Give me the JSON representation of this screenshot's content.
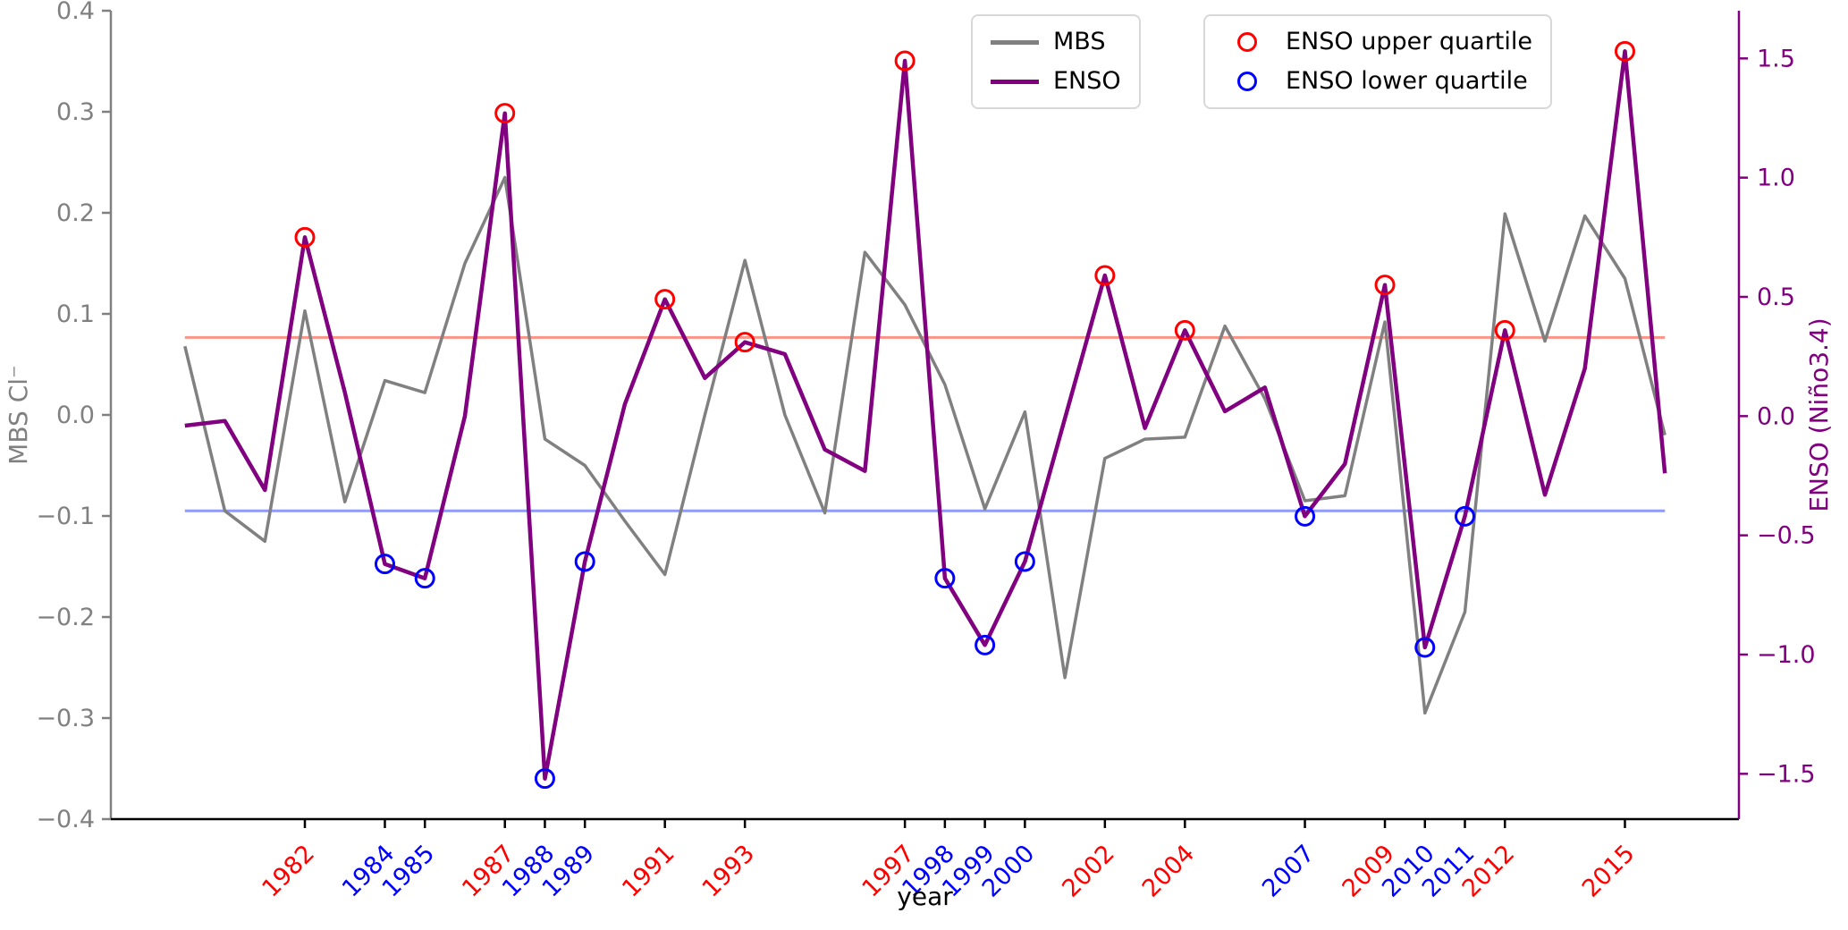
{
  "axes": {
    "left": {
      "label": "MBS Cl⁻",
      "color": "#808080",
      "range": [
        -0.4,
        0.4
      ],
      "ticks": [
        {
          "v": 0.4,
          "t": "0.4"
        },
        {
          "v": 0.3,
          "t": "0.3"
        },
        {
          "v": 0.2,
          "t": "0.2"
        },
        {
          "v": 0.1,
          "t": "0.1"
        },
        {
          "v": 0.0,
          "t": "0.0"
        },
        {
          "v": -0.1,
          "t": "−0.1"
        },
        {
          "v": -0.2,
          "t": "−0.2"
        },
        {
          "v": -0.3,
          "t": "−0.3"
        },
        {
          "v": -0.4,
          "t": "−0.4"
        }
      ]
    },
    "right": {
      "label": "ENSO (Niño3.4)",
      "color": "#800080",
      "range": [
        -1.69,
        1.7
      ],
      "ticks": [
        {
          "v": 1.5,
          "t": "1.5"
        },
        {
          "v": 1.0,
          "t": "1.0"
        },
        {
          "v": 0.5,
          "t": "0.5"
        },
        {
          "v": 0.0,
          "t": "0.0"
        },
        {
          "v": -0.5,
          "t": "−0.5"
        },
        {
          "v": -1.0,
          "t": "−1.0"
        },
        {
          "v": -1.5,
          "t": "−1.5"
        }
      ]
    },
    "bottom": {
      "label": "year",
      "color": "#000000",
      "range": [
        1977.15,
        2017.85
      ],
      "ticks": [
        {
          "year": 1982,
          "color": "#ff0000"
        },
        {
          "year": 1984,
          "color": "#0000ff"
        },
        {
          "year": 1985,
          "color": "#0000ff"
        },
        {
          "year": 1987,
          "color": "#ff0000"
        },
        {
          "year": 1988,
          "color": "#0000ff"
        },
        {
          "year": 1989,
          "color": "#0000ff"
        },
        {
          "year": 1991,
          "color": "#ff0000"
        },
        {
          "year": 1993,
          "color": "#ff0000"
        },
        {
          "year": 1997,
          "color": "#ff0000"
        },
        {
          "year": 1998,
          "color": "#0000ff"
        },
        {
          "year": 1999,
          "color": "#0000ff"
        },
        {
          "year": 2000,
          "color": "#0000ff"
        },
        {
          "year": 2002,
          "color": "#ff0000"
        },
        {
          "year": 2004,
          "color": "#ff0000"
        },
        {
          "year": 2007,
          "color": "#0000ff"
        },
        {
          "year": 2009,
          "color": "#ff0000"
        },
        {
          "year": 2010,
          "color": "#0000ff"
        },
        {
          "year": 2011,
          "color": "#0000ff"
        },
        {
          "year": 2012,
          "color": "#ff0000"
        },
        {
          "year": 2015,
          "color": "#ff0000"
        }
      ]
    }
  },
  "legend": {
    "series_box": [
      {
        "label": "MBS",
        "color": "#808080"
      },
      {
        "label": "ENSO",
        "color": "#800080"
      }
    ],
    "marker_box": [
      {
        "label": "ENSO upper quartile",
        "color": "#ff0000"
      },
      {
        "label": "ENSO lower quartile",
        "color": "#0000ff"
      }
    ]
  },
  "chart_data": {
    "type": "line",
    "title": "",
    "xlabel": "year",
    "ylabel_left": "MBS Cl⁻",
    "ylabel_right": "ENSO (Niño3.4)",
    "x_range": [
      1977.15,
      2017.85
    ],
    "ylim_left": [
      -0.4,
      0.4
    ],
    "ylim_right": [
      -1.69,
      1.7
    ],
    "grid": false,
    "legend_position": "upper center",
    "years": [
      1979,
      1980,
      1981,
      1982,
      1983,
      1984,
      1985,
      1986,
      1987,
      1988,
      1989,
      1990,
      1991,
      1992,
      1993,
      1994,
      1995,
      1996,
      1997,
      1998,
      1999,
      2000,
      2001,
      2002,
      2003,
      2004,
      2005,
      2006,
      2007,
      2008,
      2009,
      2010,
      2011,
      2012,
      2013,
      2014,
      2015,
      2016
    ],
    "series": [
      {
        "name": "MBS",
        "axis": "left",
        "color": "#808080",
        "width": 3.5,
        "values": [
          0.068,
          -0.095,
          -0.125,
          0.103,
          -0.086,
          0.034,
          0.022,
          0.15,
          0.235,
          -0.024,
          -0.05,
          -0.105,
          -0.158,
          0.0,
          0.153,
          0.0,
          -0.097,
          0.161,
          0.109,
          0.03,
          -0.093,
          0.003,
          -0.26,
          -0.043,
          -0.024,
          -0.022,
          0.088,
          0.016,
          -0.085,
          -0.08,
          0.092,
          -0.295,
          -0.195,
          0.199,
          0.073,
          0.197,
          0.135,
          -0.02
        ]
      },
      {
        "name": "ENSO",
        "axis": "right",
        "color": "#800080",
        "width": 4.5,
        "values": [
          -0.04,
          -0.02,
          -0.31,
          0.75,
          0.1,
          -0.62,
          -0.68,
          0.0,
          1.27,
          -1.52,
          -0.61,
          0.05,
          0.49,
          0.16,
          0.31,
          0.26,
          -0.14,
          -0.23,
          1.49,
          -0.68,
          -0.96,
          -0.61,
          -0.01,
          0.59,
          -0.05,
          0.36,
          0.02,
          0.12,
          -0.42,
          -0.2,
          0.55,
          -0.97,
          -0.42,
          0.36,
          -0.33,
          0.2,
          1.53,
          -0.24
        ]
      }
    ],
    "markers": {
      "upper": {
        "label": "ENSO upper quartile",
        "color": "#ff0000",
        "years": [
          1982,
          1987,
          1991,
          1993,
          1997,
          2002,
          2004,
          2009,
          2012,
          2015
        ]
      },
      "lower": {
        "label": "ENSO lower quartile",
        "color": "#0000ff",
        "years": [
          1984,
          1985,
          1988,
          1989,
          1998,
          1999,
          2000,
          2007,
          2010,
          2011
        ]
      }
    },
    "threshold_lines": [
      {
        "name": "upper-quartile-threshold",
        "value_right_axis": 0.33,
        "color": "#fa8072",
        "width": 3
      },
      {
        "name": "lower-quartile-threshold",
        "value_right_axis": -0.397,
        "color": "#7b88f8",
        "width": 3
      }
    ],
    "threshold_span_years": [
      1979,
      2016
    ]
  }
}
